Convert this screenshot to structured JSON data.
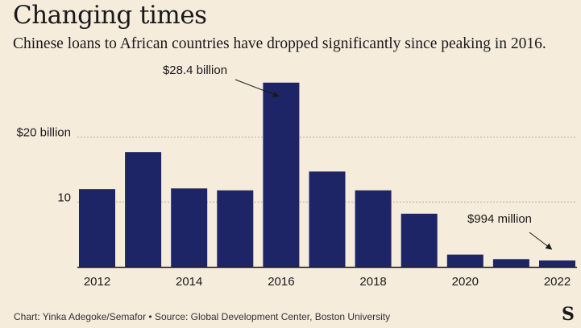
{
  "header": {
    "title": "Changing times",
    "subtitle": "Chinese loans to African countries have dropped significantly since peaking in 2016."
  },
  "footer": {
    "credit": "Chart: Yinka Adegoke/Semafor • Source: Global Development Center, Boston University",
    "logo": "S"
  },
  "colors": {
    "background": "#f5ecdc",
    "bar": "#1e2566",
    "grid": "#b5ad9f",
    "axis": "#1a1a1a"
  },
  "chart_data": {
    "type": "bar",
    "title": "Changing times",
    "subtitle": "Chinese loans to African countries have dropped significantly since peaking in 2016.",
    "xlabel": "",
    "ylabel": "",
    "categories": [
      "2012",
      "2013",
      "2014",
      "2015",
      "2016",
      "2017",
      "2018",
      "2019",
      "2020",
      "2021",
      "2022"
    ],
    "values": [
      12.0,
      17.7,
      12.1,
      11.8,
      28.4,
      14.7,
      11.8,
      8.2,
      1.9,
      1.2,
      0.994
    ],
    "unit": "billion USD",
    "ylim": [
      0,
      30
    ],
    "yticks": [
      {
        "value": 10,
        "label": "10"
      },
      {
        "value": 20,
        "label": "$20 billion"
      }
    ],
    "xtick_labels": [
      "2012",
      "2014",
      "2016",
      "2018",
      "2020",
      "2022"
    ],
    "grid": true,
    "legend": "none",
    "annotations": [
      {
        "text": "$28.4 billion",
        "category": "2016",
        "value": 28.4
      },
      {
        "text": "$994 million",
        "category": "2022",
        "value": 0.994
      }
    ]
  }
}
